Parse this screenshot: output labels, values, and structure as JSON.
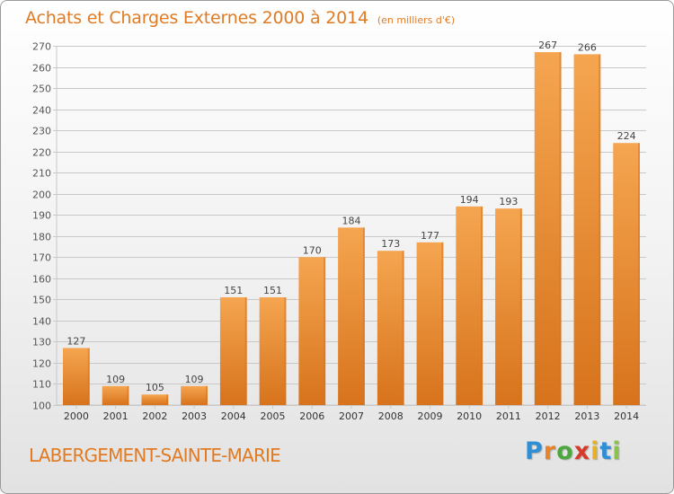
{
  "header": {
    "title": "Achats et Charges Externes 2000 à 2014",
    "subtitle": "(en milliers d'€)"
  },
  "footer": {
    "commune": "LABERGEMENT-SAINTE-MARIE",
    "brand": "Proxiti"
  },
  "colors": {
    "accent": "#e07b24",
    "bar_light": "#f5a550",
    "bar_dark": "#d7731c",
    "grid": "#c8c8c8",
    "brand_letters": [
      "#2f8fd6",
      "#e8832a",
      "#4aa83c",
      "#d63a2a",
      "#e8b024",
      "#2f8fd6",
      "#8bc34a"
    ]
  },
  "chart_data": {
    "type": "bar",
    "categories": [
      "2000",
      "2001",
      "2002",
      "2003",
      "2004",
      "2005",
      "2006",
      "2007",
      "2008",
      "2009",
      "2010",
      "2011",
      "2012",
      "2013",
      "2014"
    ],
    "values": [
      127,
      109,
      105,
      109,
      151,
      151,
      170,
      184,
      173,
      177,
      194,
      193,
      267,
      266,
      224
    ],
    "data_labels": [
      "127",
      "109",
      "105",
      "109",
      "151",
      "151",
      "170",
      "184",
      "173",
      "177",
      "194",
      "193",
      "267",
      "266",
      "224"
    ],
    "yticks": [
      "100",
      "110",
      "120",
      "130",
      "140",
      "150",
      "160",
      "170",
      "180",
      "190",
      "200",
      "210",
      "220",
      "230",
      "240",
      "250",
      "260",
      "270"
    ],
    "ylim": [
      100,
      270
    ],
    "ytick_step": 10,
    "grid": true,
    "xlabel": "",
    "ylabel": ""
  }
}
